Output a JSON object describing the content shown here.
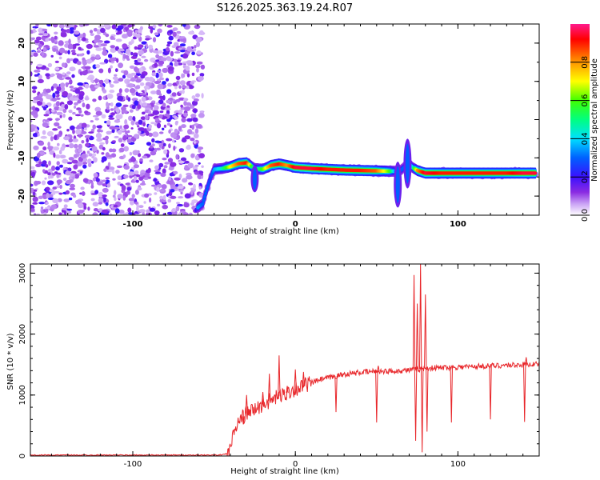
{
  "chart_data": [
    {
      "type": "heatmap",
      "title": "S126.2025.363.19.24.R07",
      "xlabel": "Height of straight line (km)",
      "ylabel": "Frequency (Hz)",
      "xlim": [
        -163,
        150
      ],
      "ylim": [
        -25,
        25
      ],
      "x_ticks": [
        -100,
        0,
        100
      ],
      "y_ticks": [
        -20,
        -10,
        0,
        10,
        20
      ],
      "colorbar": {
        "label": "Normalized spectral amplitude",
        "range": [
          0.0,
          1.0
        ],
        "ticks": [
          0.0,
          0.2,
          0.4,
          0.6,
          0.8
        ],
        "colors": [
          "#ffffff",
          "#c9a2f5",
          "#8a2be2",
          "#3b10ff",
          "#0060ff",
          "#00e0ff",
          "#00ff80",
          "#40ff00",
          "#ffff00",
          "#ff8000",
          "#ff0000",
          "#ff1a8c"
        ]
      },
      "noise_region_x": [
        -163,
        -57
      ],
      "signal_track": {
        "x": [
          -60,
          -57,
          -55,
          -52,
          -50,
          -45,
          -40,
          -35,
          -30,
          -25,
          -20,
          -15,
          -10,
          -5,
          0,
          10,
          20,
          30,
          40,
          50,
          58,
          62,
          65,
          68,
          70,
          72,
          75,
          80,
          90,
          100,
          110,
          120,
          130,
          140,
          148
        ],
        "y": [
          -23,
          -22,
          -19,
          -15,
          -13,
          -12.8,
          -12.3,
          -11.5,
          -11.3,
          -12.8,
          -13,
          -12,
          -11.6,
          -12,
          -12.5,
          -12.8,
          -13,
          -13.2,
          -13.3,
          -13.4,
          -13.5,
          -13.5,
          -13.2,
          -12,
          -11.5,
          -12.5,
          -13.3,
          -14,
          -14,
          -14,
          -14,
          -14,
          -14,
          -14,
          -14
        ],
        "amplitude": [
          0.35,
          0.3,
          0.3,
          0.25,
          0.35,
          0.45,
          0.7,
          0.85,
          0.9,
          0.4,
          0.6,
          0.85,
          0.9,
          0.8,
          0.95,
          0.95,
          0.9,
          0.9,
          0.9,
          0.85,
          0.6,
          0.3,
          0.3,
          0.3,
          0.4,
          0.4,
          0.8,
          0.95,
          0.9,
          0.9,
          0.9,
          0.9,
          0.9,
          0.95,
          0.95
        ]
      },
      "spikes": [
        {
          "x": -25,
          "y_range": [
            -19,
            -12
          ]
        },
        {
          "x": 63,
          "y_range": [
            -23,
            -11
          ]
        },
        {
          "x": 69,
          "y_range": [
            -18,
            -5
          ]
        }
      ]
    },
    {
      "type": "line",
      "title": "",
      "xlabel": "Height of straight line (km)",
      "ylabel": "SNR (10 * v/v)",
      "xlim": [
        -163,
        150
      ],
      "ylim": [
        0,
        3150
      ],
      "x_ticks": [
        -100,
        0,
        100
      ],
      "y_ticks": [
        0,
        1000,
        2000,
        3000
      ],
      "series": [
        {
          "color": "#e8262a",
          "x": [
            -163,
            -120,
            -80,
            -50,
            -45,
            -42,
            -40,
            -38,
            -36,
            -34,
            -32,
            -30,
            -28,
            -26,
            -24,
            -22,
            -20,
            -18,
            -16,
            -14,
            -12,
            -10,
            -8,
            -6,
            -4,
            -2,
            0,
            5,
            10,
            15,
            20,
            25,
            30,
            40,
            50,
            60,
            65,
            70,
            75,
            80,
            90,
            100,
            110,
            120,
            130,
            140,
            150
          ],
          "y": [
            15,
            15,
            15,
            15,
            20,
            40,
            150,
            350,
            500,
            600,
            650,
            700,
            720,
            750,
            780,
            800,
            850,
            880,
            900,
            930,
            950,
            980,
            1000,
            1020,
            1050,
            1080,
            1100,
            1150,
            1200,
            1250,
            1280,
            1310,
            1340,
            1370,
            1390,
            1390,
            1400,
            1410,
            1420,
            1440,
            1450,
            1460,
            1470,
            1480,
            1490,
            1500,
            1510
          ]
        }
      ],
      "spikes": [
        {
          "x": -32,
          "y": 520
        },
        {
          "x": -30,
          "y": 1000
        },
        {
          "x": -20,
          "y": 1050
        },
        {
          "x": -16,
          "y": 1350
        },
        {
          "x": -10,
          "y": 1650
        },
        {
          "x": -5,
          "y": 1150
        },
        {
          "x": 0,
          "y": 1420
        },
        {
          "x": 5,
          "y": 1380
        },
        {
          "x": 25,
          "y": 720,
          "down": true
        },
        {
          "x": 50,
          "y": 550,
          "down": true
        },
        {
          "x": 51,
          "y": 1480
        },
        {
          "x": 73,
          "y": 2970
        },
        {
          "x": 74,
          "y": 250,
          "down": true
        },
        {
          "x": 75,
          "y": 2500
        },
        {
          "x": 77,
          "y": 3150
        },
        {
          "x": 78,
          "y": 60,
          "down": true
        },
        {
          "x": 80,
          "y": 2650
        },
        {
          "x": 81,
          "y": 400,
          "down": true
        },
        {
          "x": 96,
          "y": 550,
          "down": true
        },
        {
          "x": 120,
          "y": 600,
          "down": true
        },
        {
          "x": 141,
          "y": 560,
          "down": true
        },
        {
          "x": 142,
          "y": 1620
        }
      ]
    }
  ]
}
